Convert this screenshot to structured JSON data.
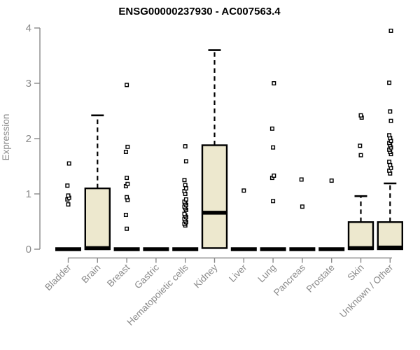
{
  "chart_data": {
    "type": "boxplot",
    "title": "ENSG00000237930 - AC007563.4",
    "ylabel": "Expression",
    "xlabel": "",
    "ylim": [
      0,
      4
    ],
    "yticks": [
      0,
      1,
      2,
      3,
      4
    ],
    "grid": false,
    "legend": "none",
    "colors": {
      "box_fill": "#EDE8CE",
      "box_stroke": "#000000",
      "median": "#000000",
      "outlier_stroke": "#000000",
      "outlier_fill": "#FFFFFF",
      "axis": "#8A8A8A",
      "title": "#000000",
      "background": "#FFFFFF"
    },
    "categories": [
      "Bladder",
      "Brain",
      "Breast",
      "Gastric",
      "Hematopoietic cells",
      "Kidney",
      "Liver",
      "Lung",
      "Pancreas",
      "Prostate",
      "Skin",
      "Unknown / Other"
    ],
    "series": [
      {
        "name": "Bladder",
        "q1": 0,
        "median": 0,
        "q3": 0,
        "whisker_low": 0,
        "whisker_high": 0,
        "outliers": [
          0.81,
          0.9,
          0.93,
          0.97,
          1.15,
          1.55
        ]
      },
      {
        "name": "Brain",
        "q1": 0,
        "median": 0.02,
        "q3": 1.1,
        "whisker_low": 0,
        "whisker_high": 2.42,
        "outliers": []
      },
      {
        "name": "Breast",
        "q1": 0,
        "median": 0,
        "q3": 0,
        "whisker_low": 0,
        "whisker_high": 0,
        "outliers": [
          0.37,
          0.62,
          0.89,
          0.94,
          1.14,
          1.18,
          1.29,
          1.76,
          1.85,
          2.97
        ]
      },
      {
        "name": "Gastric",
        "q1": 0,
        "median": 0,
        "q3": 0,
        "whisker_low": 0,
        "whisker_high": 0,
        "outliers": []
      },
      {
        "name": "Hematopoietic cells",
        "q1": 0,
        "median": 0,
        "q3": 0,
        "whisker_low": 0,
        "whisker_high": 0,
        "outliers": [
          0.43,
          0.46,
          0.49,
          0.52,
          0.55,
          0.58,
          0.61,
          0.64,
          0.71,
          0.74,
          0.77,
          0.8,
          0.83,
          0.86,
          0.9,
          1.0,
          1.05,
          1.1,
          1.16,
          1.25,
          1.59,
          1.86
        ]
      },
      {
        "name": "Kidney",
        "q1": 0.02,
        "median": 0.66,
        "q3": 1.88,
        "whisker_low": 0.02,
        "whisker_high": 3.6,
        "outliers": []
      },
      {
        "name": "Liver",
        "q1": 0,
        "median": 0,
        "q3": 0,
        "whisker_low": 0,
        "whisker_high": 0,
        "outliers": [
          1.06
        ]
      },
      {
        "name": "Lung",
        "q1": 0,
        "median": 0,
        "q3": 0,
        "whisker_low": 0,
        "whisker_high": 0,
        "outliers": [
          0.87,
          1.29,
          1.33,
          1.84,
          2.18,
          3.0
        ]
      },
      {
        "name": "Pancreas",
        "q1": 0,
        "median": 0,
        "q3": 0,
        "whisker_low": 0,
        "whisker_high": 0,
        "outliers": [
          0.77,
          1.26
        ]
      },
      {
        "name": "Prostate",
        "q1": 0,
        "median": 0,
        "q3": 0,
        "whisker_low": 0,
        "whisker_high": 0,
        "outliers": [
          1.24
        ]
      },
      {
        "name": "Skin",
        "q1": 0,
        "median": 0.02,
        "q3": 0.49,
        "whisker_low": 0,
        "whisker_high": 0.96,
        "outliers": [
          1.7,
          1.87,
          2.38,
          2.42
        ]
      },
      {
        "name": "Unknown / Other",
        "q1": 0,
        "median": 0.03,
        "q3": 0.49,
        "whisker_low": 0,
        "whisker_high": 1.19,
        "outliers": [
          1.37,
          1.42,
          1.47,
          1.52,
          1.58,
          1.72,
          1.76,
          1.8,
          1.84,
          1.88,
          1.92,
          1.96,
          2.01,
          2.06,
          2.32,
          2.49,
          3.01,
          3.95
        ]
      }
    ]
  }
}
